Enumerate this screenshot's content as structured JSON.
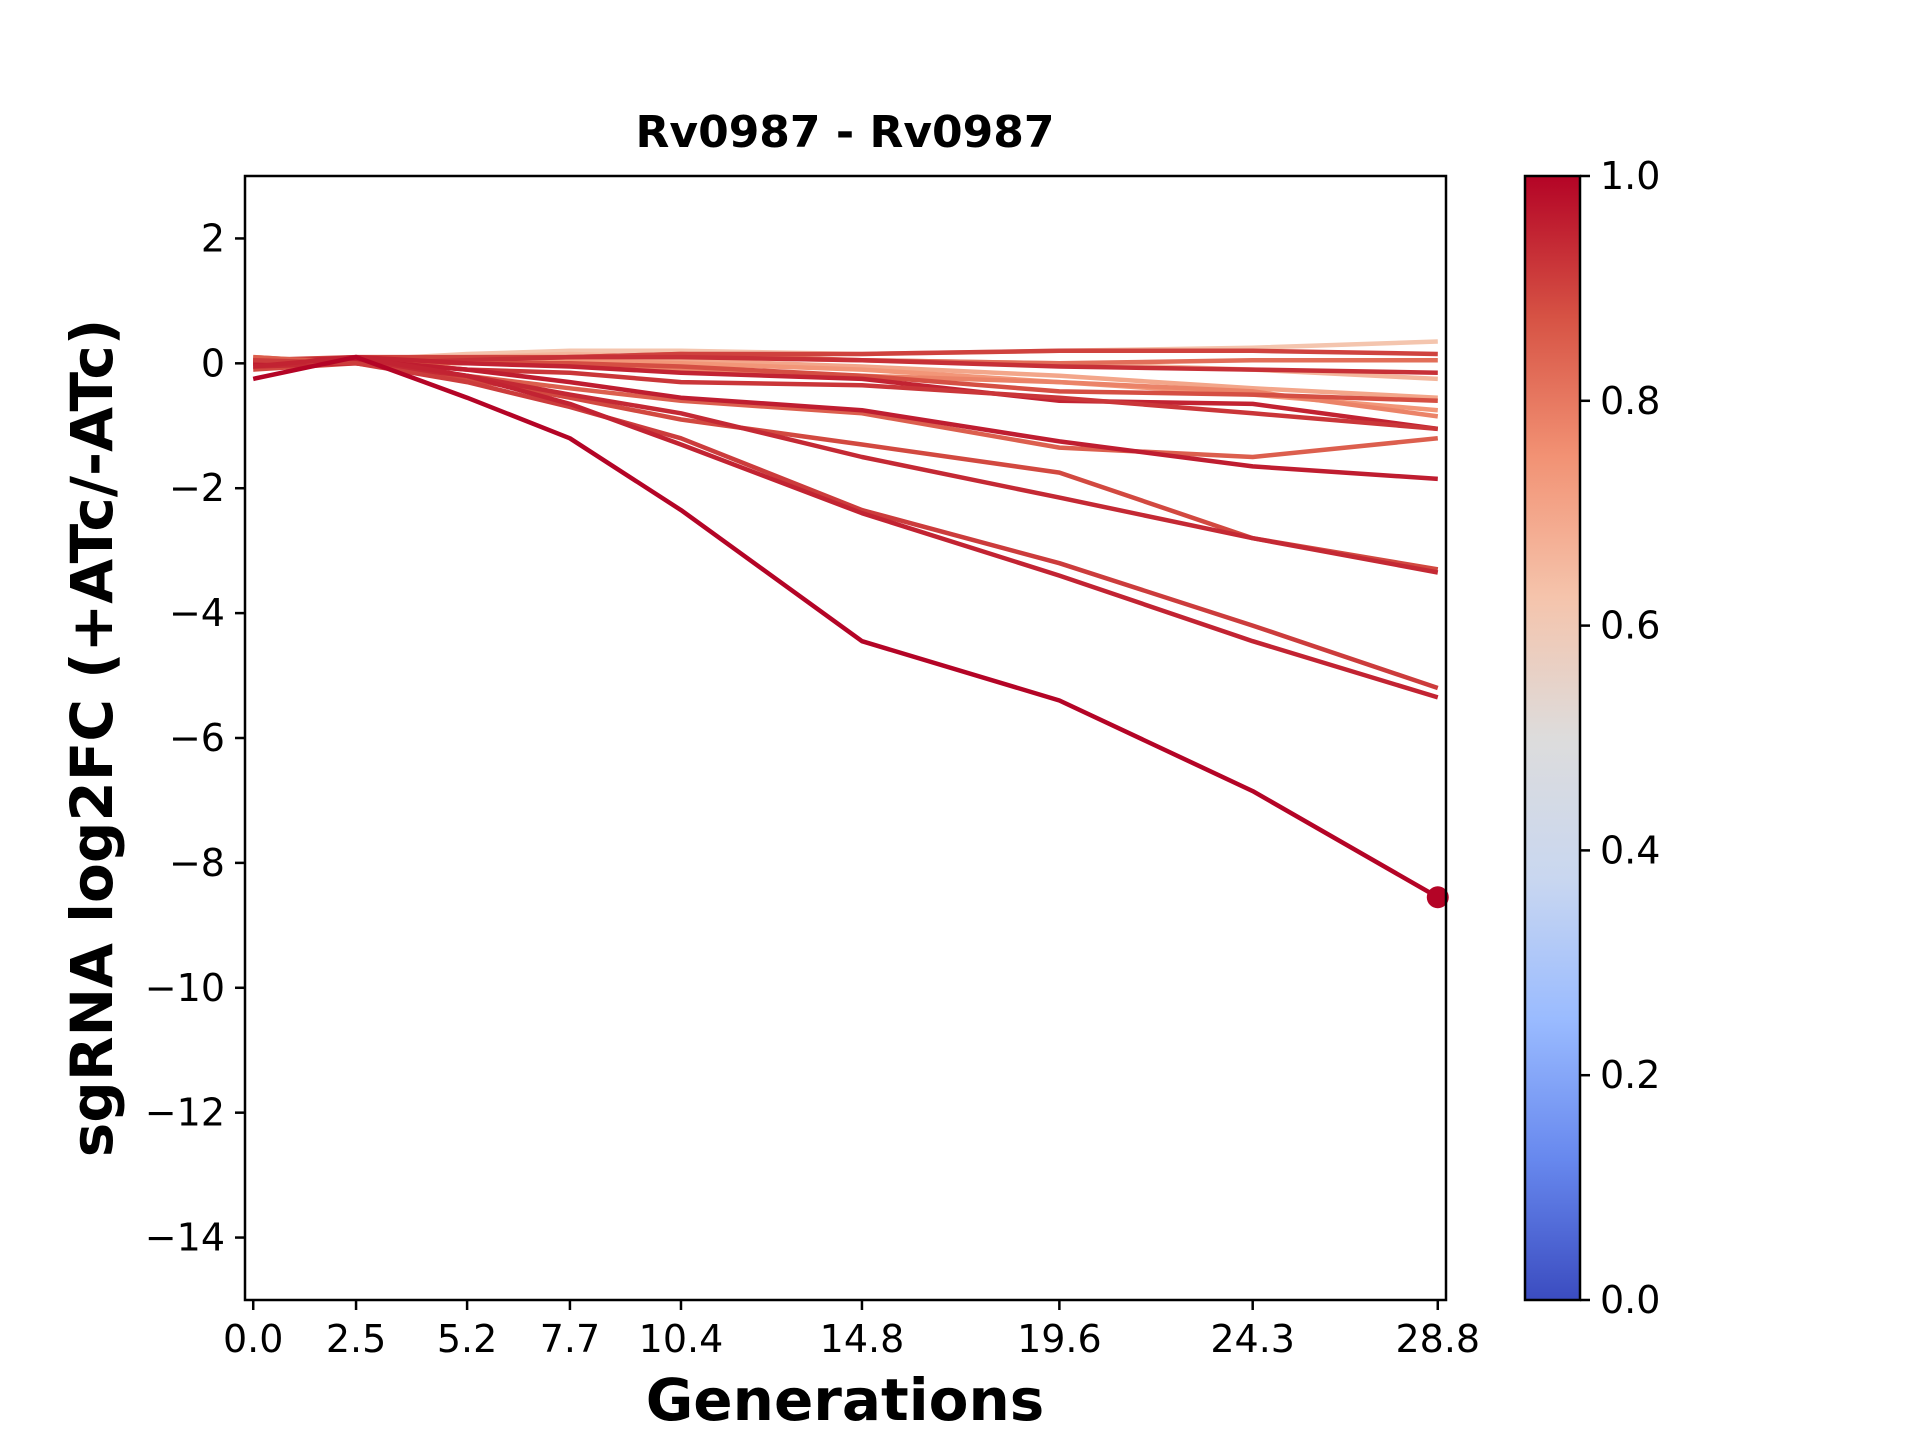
{
  "chart_data": {
    "type": "line",
    "title": "Rv0987 - Rv0987",
    "xlabel": "Generations",
    "ylabel": "sgRNA log2FC (+ATc/-ATc)",
    "x": [
      0.0,
      2.5,
      5.2,
      7.7,
      10.4,
      14.8,
      19.6,
      24.3,
      28.8
    ],
    "x_tick_labels": [
      "0.0",
      "2.5",
      "5.2",
      "7.7",
      "10.4",
      "14.8",
      "19.6",
      "24.3",
      "28.8"
    ],
    "xlim": [
      -0.2,
      29.0
    ],
    "ylim": [
      -15,
      3
    ],
    "y_ticks": [
      2,
      0,
      -2,
      -4,
      -6,
      -8,
      -10,
      -12,
      -14
    ],
    "y_tick_labels": [
      "2",
      "0",
      "−2",
      "−4",
      "−6",
      "−8",
      "−10",
      "−12",
      "−14"
    ],
    "grid": false,
    "series": [
      {
        "color_value": 0.62,
        "values": [
          0.0,
          0.05,
          0.15,
          0.2,
          0.2,
          0.15,
          0.2,
          0.25,
          0.35
        ]
      },
      {
        "color_value": 0.66,
        "values": [
          -0.05,
          0.05,
          0.1,
          0.15,
          0.1,
          0.05,
          0.0,
          -0.1,
          -0.25
        ]
      },
      {
        "color_value": 0.7,
        "values": [
          0.05,
          0.0,
          0.05,
          0.1,
          0.05,
          -0.05,
          -0.2,
          -0.4,
          -0.55
        ]
      },
      {
        "color_value": 0.74,
        "values": [
          0.0,
          0.05,
          0.05,
          0.05,
          0.0,
          -0.1,
          -0.3,
          -0.5,
          -0.75
        ]
      },
      {
        "color_value": 0.78,
        "values": [
          0.1,
          0.0,
          0.0,
          0.0,
          -0.1,
          -0.2,
          -0.3,
          -0.45,
          -0.85
        ]
      },
      {
        "color_value": 0.82,
        "values": [
          0.05,
          0.0,
          0.05,
          0.1,
          0.15,
          0.05,
          0.0,
          0.05,
          0.05
        ]
      },
      {
        "color_value": 0.9,
        "values": [
          0.05,
          0.1,
          0.1,
          0.1,
          0.15,
          0.15,
          0.2,
          0.2,
          0.15
        ]
      },
      {
        "color_value": 0.93,
        "values": [
          0.05,
          0.0,
          0.05,
          0.1,
          0.1,
          0.05,
          -0.05,
          -0.1,
          -0.15
        ]
      },
      {
        "color_value": 0.88,
        "values": [
          0.0,
          0.05,
          0.0,
          0.0,
          -0.05,
          -0.2,
          -0.45,
          -0.5,
          -0.6
        ]
      },
      {
        "color_value": 0.95,
        "values": [
          0.0,
          0.1,
          0.0,
          -0.05,
          -0.15,
          -0.25,
          -0.6,
          -0.65,
          -1.05
        ]
      },
      {
        "color_value": 0.92,
        "values": [
          0.0,
          0.05,
          -0.1,
          -0.15,
          -0.3,
          -0.35,
          -0.55,
          -0.8,
          -1.05
        ]
      },
      {
        "color_value": 0.85,
        "values": [
          0.1,
          0.0,
          -0.2,
          -0.4,
          -0.6,
          -0.8,
          -1.35,
          -1.5,
          -1.2
        ]
      },
      {
        "color_value": 0.96,
        "values": [
          0.0,
          0.05,
          -0.1,
          -0.3,
          -0.55,
          -0.75,
          -1.25,
          -1.65,
          -1.85
        ]
      },
      {
        "color_value": 0.89,
        "values": [
          -0.1,
          0.0,
          -0.25,
          -0.55,
          -0.9,
          -1.3,
          -1.75,
          -2.8,
          -3.3
        ]
      },
      {
        "color_value": 0.94,
        "values": [
          -0.05,
          0.0,
          -0.2,
          -0.5,
          -0.8,
          -1.5,
          -2.15,
          -2.8,
          -3.35
        ]
      },
      {
        "color_value": 0.91,
        "values": [
          0.05,
          0.0,
          -0.3,
          -0.7,
          -1.2,
          -2.35,
          -3.2,
          -4.2,
          -5.2
        ]
      },
      {
        "color_value": 0.95,
        "values": [
          -0.05,
          0.1,
          -0.2,
          -0.65,
          -1.3,
          -2.4,
          -3.4,
          -4.45,
          -5.35
        ]
      },
      {
        "color_value": 1.0,
        "values": [
          -0.25,
          0.1,
          -0.55,
          -1.2,
          -2.35,
          -4.45,
          -5.4,
          -6.85,
          -8.55
        ]
      }
    ],
    "end_marker": {
      "x": 28.8,
      "y": -8.55,
      "color_value": 1.0
    },
    "colorbar": {
      "colormap": "coolwarm",
      "range": [
        0.0,
        1.0
      ],
      "ticks": [
        0.0,
        0.2,
        0.4,
        0.6,
        0.8,
        1.0
      ],
      "tick_labels": [
        "0.0",
        "0.2",
        "0.4",
        "0.6",
        "0.8",
        "1.0"
      ],
      "stops": [
        "#3b4cc0",
        "#6788ee",
        "#9abbff",
        "#c9d7f0",
        "#dddcdc",
        "#f5c4ac",
        "#f29274",
        "#d65244",
        "#b40426"
      ]
    }
  }
}
